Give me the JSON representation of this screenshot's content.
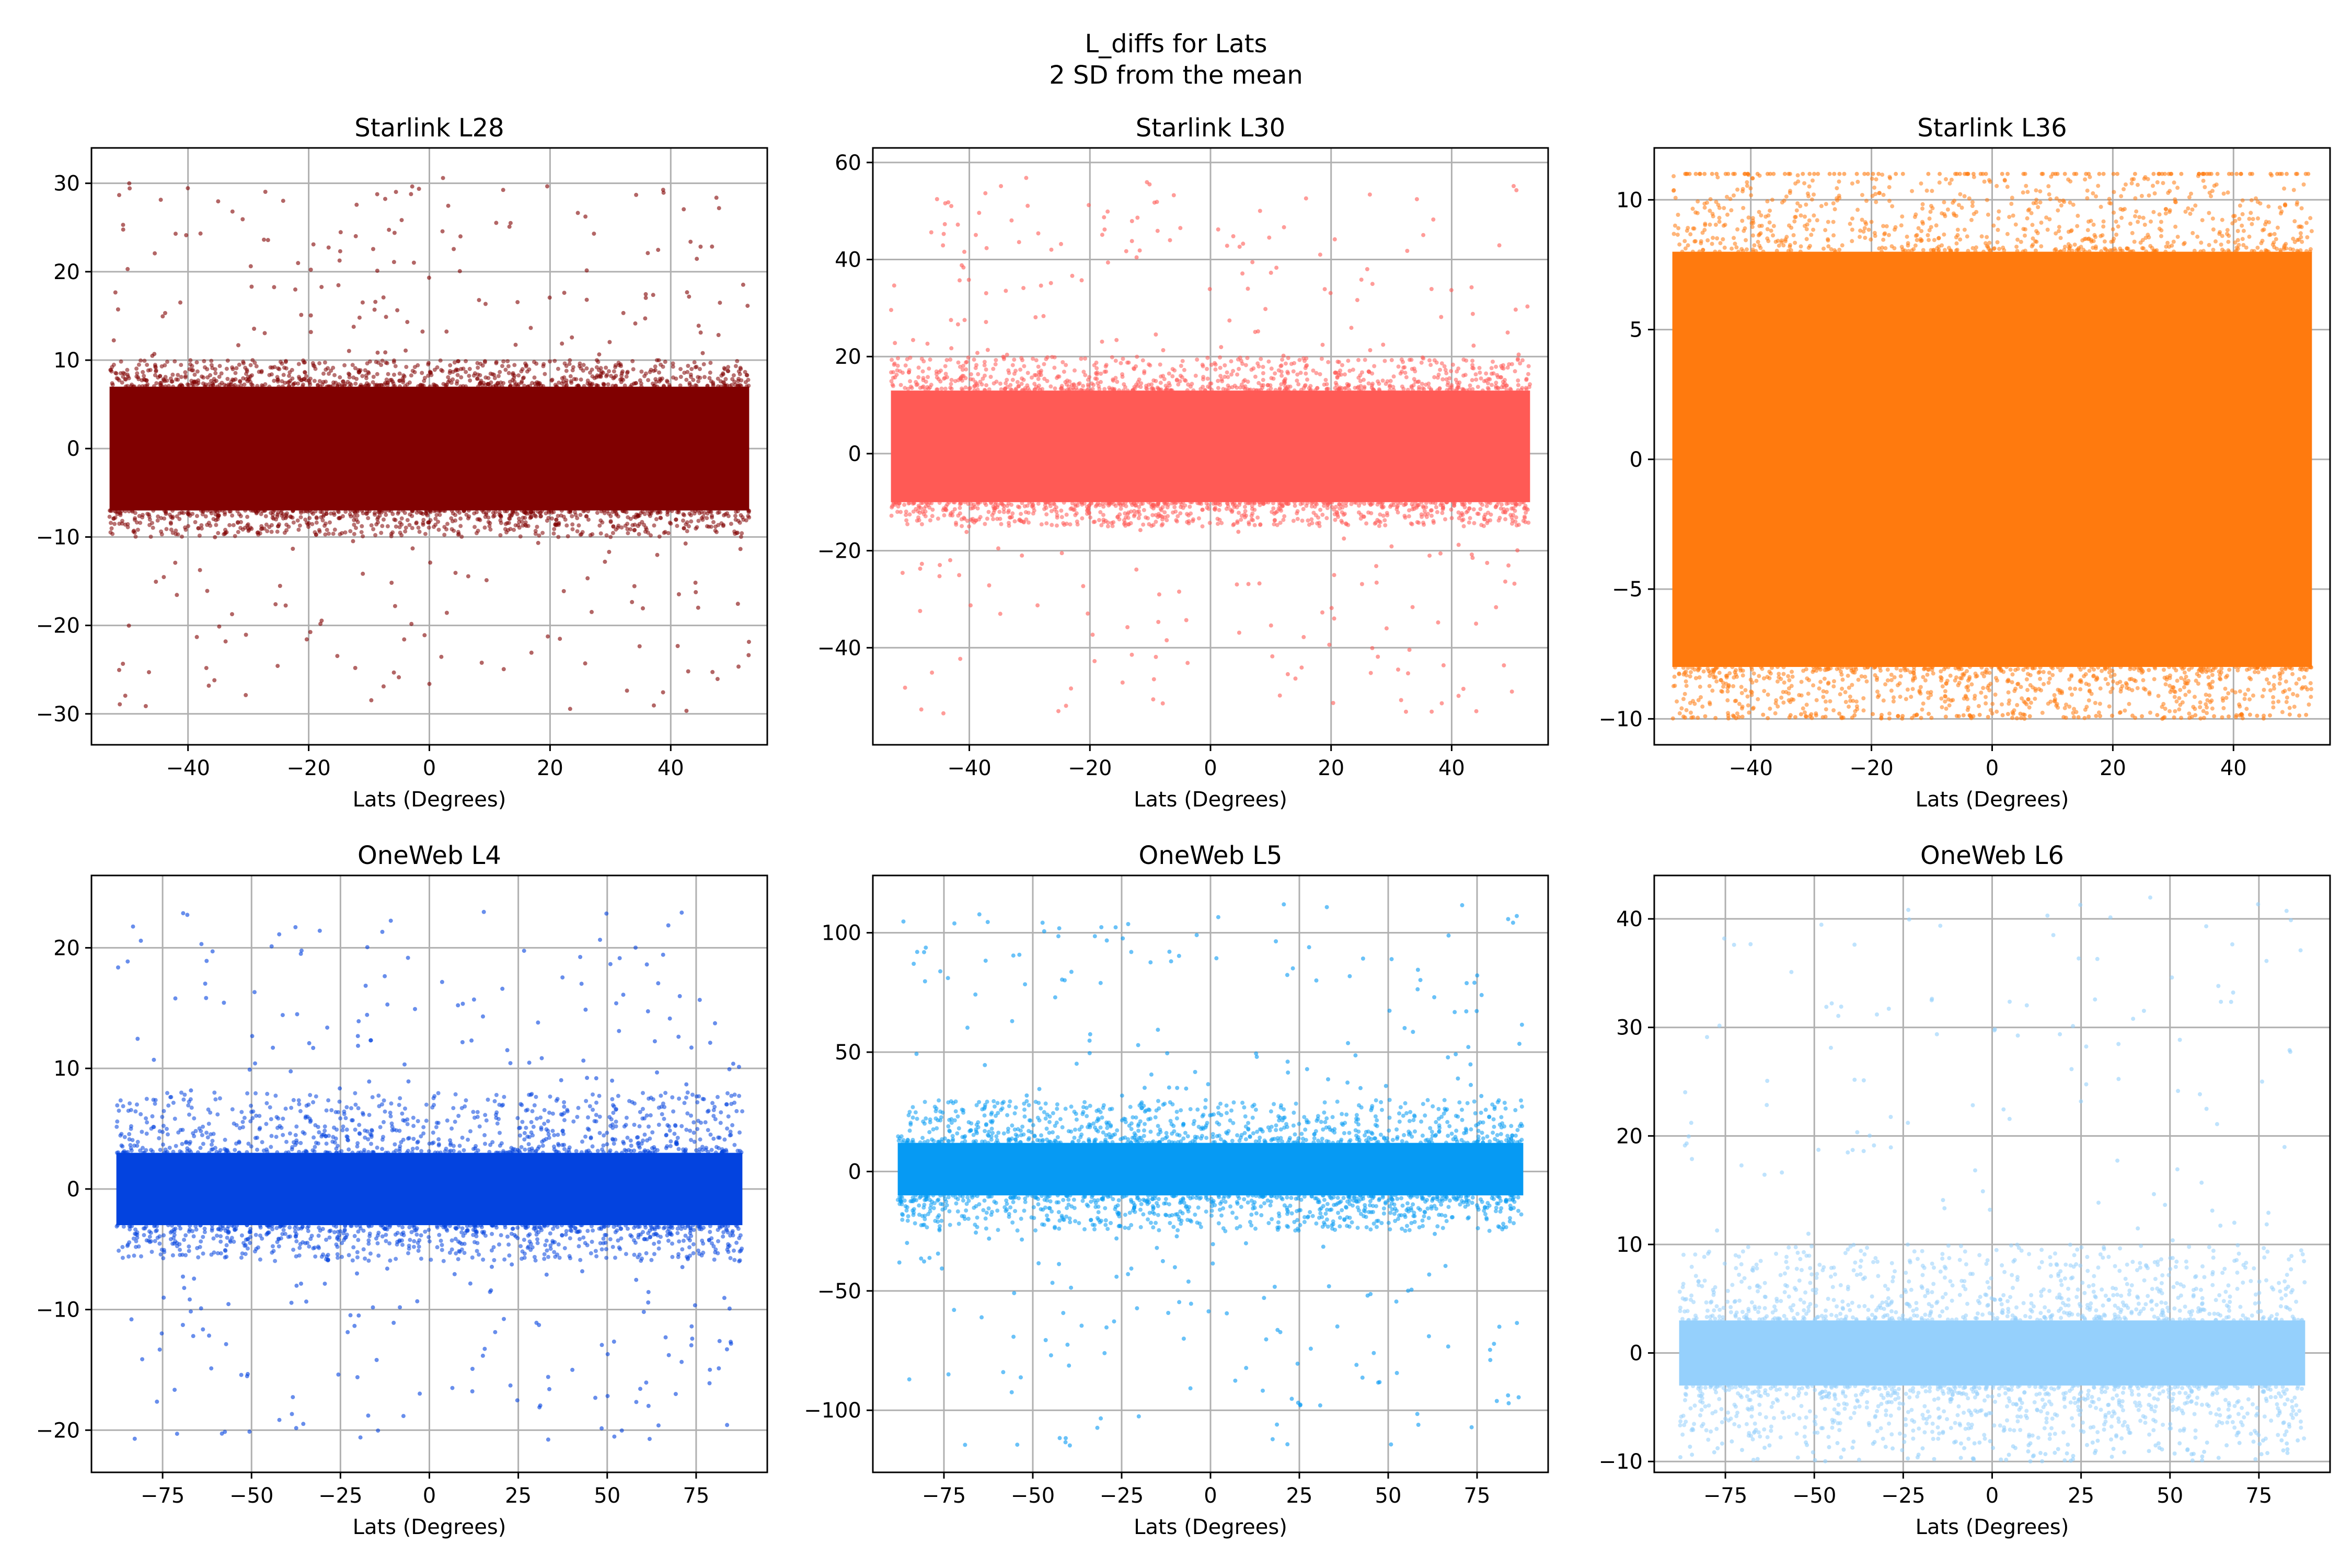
{
  "figure": {
    "title_line1": "L_diffs for Lats",
    "title_line2": "2 SD from the mean"
  },
  "chart_data": [
    {
      "type": "scatter",
      "title": "Starlink L28",
      "xlabel": "Lats (Degrees)",
      "ylabel": "",
      "xlim": [
        -56,
        56
      ],
      "ylim": [
        -33.5,
        34
      ],
      "xticks": [
        -40,
        -20,
        0,
        20,
        40
      ],
      "xtick_labels": [
        "−40",
        "−20",
        "0",
        "20",
        "40"
      ],
      "yticks": [
        -30,
        -20,
        -10,
        0,
        10,
        20,
        30
      ],
      "ytick_labels": [
        "−30",
        "−20",
        "−10",
        "0",
        "10",
        "20",
        "30"
      ],
      "grid": true,
      "color": "#800000",
      "x_range": [
        -53,
        53
      ],
      "core_band": [
        -7,
        7
      ],
      "halo_band": [
        -10,
        10
      ],
      "outlier_range": [
        -30,
        31
      ]
    },
    {
      "type": "scatter",
      "title": "Starlink L30",
      "xlabel": "Lats (Degrees)",
      "ylabel": "",
      "xlim": [
        -56,
        56
      ],
      "ylim": [
        -60,
        63
      ],
      "xticks": [
        -40,
        -20,
        0,
        20,
        40
      ],
      "xtick_labels": [
        "−40",
        "−20",
        "0",
        "20",
        "40"
      ],
      "yticks": [
        -40,
        -20,
        0,
        20,
        40,
        60
      ],
      "ytick_labels": [
        "−40",
        "−20",
        "0",
        "20",
        "40",
        "60"
      ],
      "grid": true,
      "color": "#ff5a55",
      "x_range": [
        -53,
        53
      ],
      "core_band": [
        -10,
        13
      ],
      "halo_band": [
        -15,
        20
      ],
      "outlier_range": [
        -54,
        57
      ]
    },
    {
      "type": "scatter",
      "title": "Starlink L36",
      "xlabel": "Lats (Degrees)",
      "ylabel": "",
      "xlim": [
        -56,
        56
      ],
      "ylim": [
        -11,
        12
      ],
      "xticks": [
        -40,
        -20,
        0,
        20,
        40
      ],
      "xtick_labels": [
        "−40",
        "−20",
        "0",
        "20",
        "40"
      ],
      "yticks": [
        -10,
        -5,
        0,
        5,
        10
      ],
      "ytick_labels": [
        "−10",
        "−5",
        "0",
        "5",
        "10"
      ],
      "grid": true,
      "color": "#ff7a0e",
      "x_range": [
        -53,
        53
      ],
      "core_band": [
        -8,
        8
      ],
      "halo_band": [
        -9.8,
        11
      ],
      "outlier_range": [
        -10,
        11
      ]
    },
    {
      "type": "scatter",
      "title": "OneWeb L4",
      "xlabel": "Lats (Degrees)",
      "ylabel": "",
      "xlim": [
        -95,
        95
      ],
      "ylim": [
        -23.5,
        26
      ],
      "xticks": [
        -75,
        -50,
        -25,
        0,
        25,
        50,
        75
      ],
      "xtick_labels": [
        "−75",
        "−50",
        "−25",
        "0",
        "25",
        "50",
        "75"
      ],
      "yticks": [
        -20,
        -10,
        0,
        10,
        20
      ],
      "ytick_labels": [
        "−20",
        "−10",
        "0",
        "10",
        "20"
      ],
      "grid": true,
      "color": "#0343df",
      "x_range": [
        -88,
        88
      ],
      "core_band": [
        -3,
        3
      ],
      "halo_band": [
        -6,
        8
      ],
      "outlier_range": [
        -21,
        23
      ]
    },
    {
      "type": "scatter",
      "title": "OneWeb L5",
      "xlabel": "Lats (Degrees)",
      "ylabel": "",
      "xlim": [
        -95,
        95
      ],
      "ylim": [
        -126,
        124
      ],
      "xticks": [
        -75,
        -50,
        -25,
        0,
        25,
        50,
        75
      ],
      "xtick_labels": [
        "−75",
        "−50",
        "−25",
        "0",
        "25",
        "50",
        "75"
      ],
      "yticks": [
        -100,
        -50,
        0,
        50,
        100
      ],
      "ytick_labels": [
        "−100",
        "−50",
        "0",
        "50",
        "100"
      ],
      "grid": true,
      "color": "#069af3",
      "x_range": [
        -88,
        88
      ],
      "core_band": [
        -10,
        12
      ],
      "halo_band": [
        -25,
        30
      ],
      "outlier_range": [
        -115,
        113
      ]
    },
    {
      "type": "scatter",
      "title": "OneWeb L6",
      "xlabel": "Lats (Degrees)",
      "ylabel": "",
      "xlim": [
        -95,
        95
      ],
      "ylim": [
        -11,
        44
      ],
      "xticks": [
        -75,
        -50,
        -25,
        0,
        25,
        50,
        75
      ],
      "xtick_labels": [
        "−75",
        "−50",
        "−25",
        "0",
        "25",
        "50",
        "75"
      ],
      "yticks": [
        -10,
        0,
        10,
        20,
        30,
        40
      ],
      "ytick_labels": [
        "−10",
        "0",
        "10",
        "20",
        "30",
        "40"
      ],
      "grid": true,
      "color": "#95d0fc",
      "x_range": [
        -88,
        88
      ],
      "core_band": [
        -3,
        3
      ],
      "halo_band": [
        -8,
        10
      ],
      "outlier_range": [
        -10,
        42
      ]
    }
  ]
}
